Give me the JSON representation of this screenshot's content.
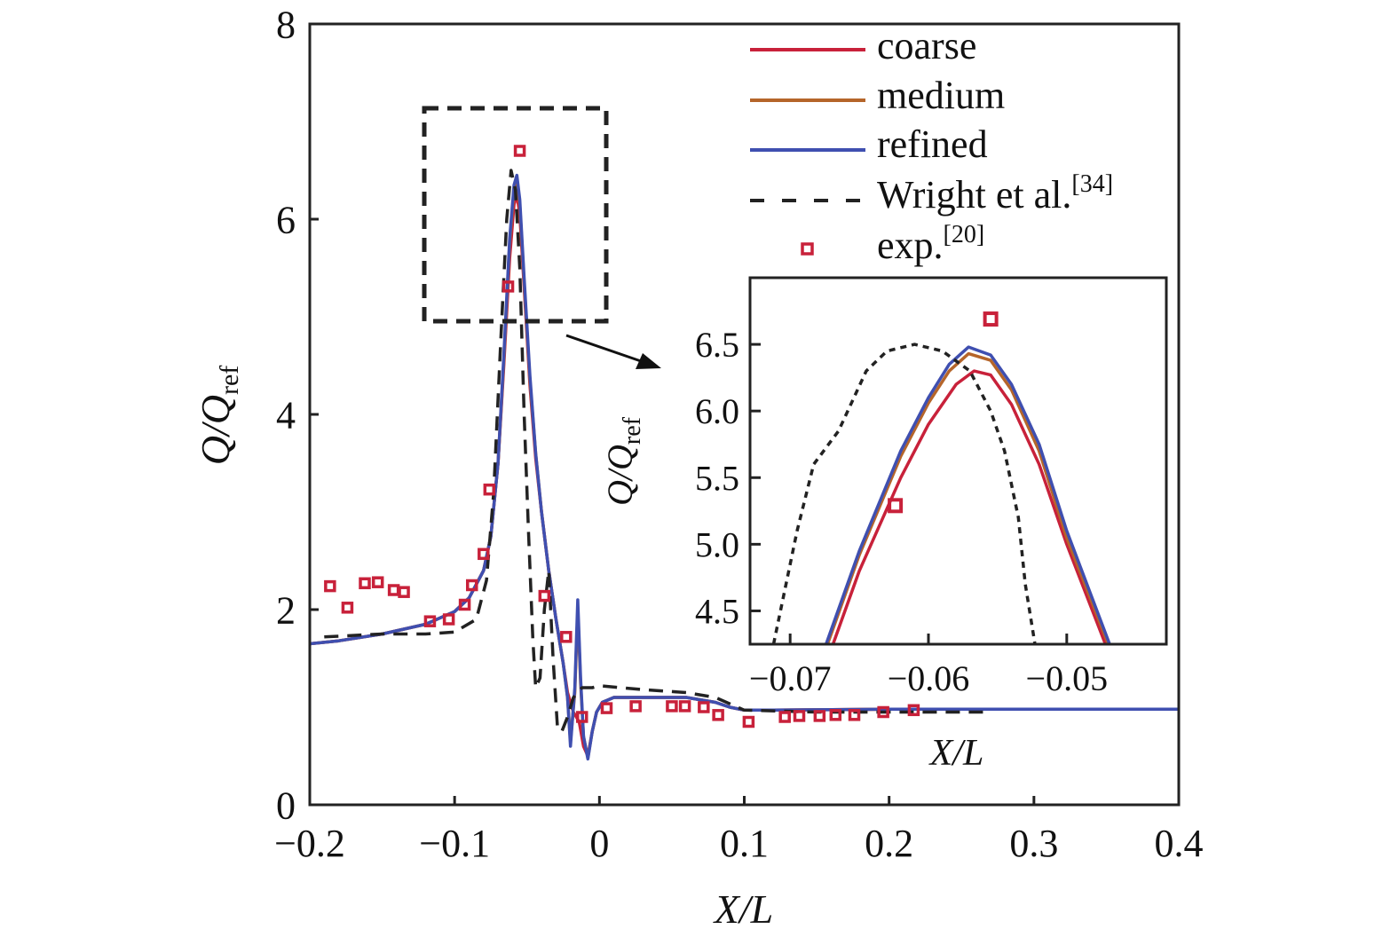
{
  "colors": {
    "coarse": "#c8213a",
    "medium": "#b5652a",
    "refined": "#3f4fb0",
    "wright": "#222222",
    "exp": "#c8213a"
  },
  "legend": {
    "placement": "top-right",
    "items": [
      {
        "label": "coarse",
        "sup": ""
      },
      {
        "label": "medium",
        "sup": ""
      },
      {
        "label": "refined",
        "sup": ""
      },
      {
        "label": "Wright et al.",
        "sup": "[34]"
      },
      {
        "label": "exp.",
        "sup": "[20]"
      }
    ]
  },
  "chart_data": [
    {
      "type": "line",
      "xlabel": "X/L",
      "ylabel": {
        "main": "Q/Q",
        "sub": "ref"
      },
      "xlim": [
        -0.2,
        0.4
      ],
      "ylim": [
        0,
        8
      ],
      "xticks": [
        "−0.2",
        "−0.1",
        "0",
        "0.1",
        "0.2",
        "0.3",
        "0.4"
      ],
      "xtick_values": [
        -0.2,
        -0.1,
        0,
        0.1,
        0.2,
        0.3,
        0.4
      ],
      "yticks": [
        "0",
        "2",
        "4",
        "6",
        "8"
      ],
      "ytick_values": [
        0,
        2,
        4,
        6,
        8
      ],
      "grid": false,
      "series": [
        {
          "name": "coarse",
          "style": "solid",
          "x": [
            -0.2,
            -0.18,
            -0.15,
            -0.12,
            -0.1,
            -0.09,
            -0.08,
            -0.075,
            -0.07,
            -0.066,
            -0.062,
            -0.059,
            -0.057,
            -0.055,
            -0.052,
            -0.048,
            -0.044,
            -0.04,
            -0.035,
            -0.03,
            -0.025,
            -0.022,
            -0.018,
            -0.014,
            -0.011,
            -0.008,
            -0.005,
            -0.002,
            0.002,
            0.01,
            0.03,
            0.06,
            0.08,
            0.09,
            0.1,
            0.12,
            0.2,
            0.3,
            0.4
          ],
          "y": [
            1.65,
            1.68,
            1.75,
            1.85,
            1.98,
            2.12,
            2.4,
            2.75,
            3.5,
            4.5,
            5.6,
            6.15,
            6.25,
            6.05,
            5.3,
            4.3,
            3.55,
            3.0,
            2.4,
            1.9,
            1.45,
            1.15,
            0.95,
            0.85,
            0.6,
            0.5,
            0.75,
            0.95,
            1.05,
            1.1,
            1.1,
            1.1,
            1.05,
            1.0,
            0.97,
            0.97,
            0.98,
            0.98,
            0.98
          ]
        },
        {
          "name": "medium",
          "style": "solid",
          "x": [
            -0.2,
            -0.18,
            -0.15,
            -0.12,
            -0.1,
            -0.09,
            -0.08,
            -0.075,
            -0.07,
            -0.066,
            -0.062,
            -0.059,
            -0.057,
            -0.055,
            -0.052,
            -0.048,
            -0.044,
            -0.04,
            -0.035,
            -0.03,
            -0.025,
            -0.022,
            -0.02,
            -0.017,
            -0.015,
            -0.013,
            -0.011,
            -0.008,
            -0.005,
            -0.002,
            0.002,
            0.01,
            0.03,
            0.06,
            0.08,
            0.09,
            0.1,
            0.12,
            0.2,
            0.3,
            0.4
          ],
          "y": [
            1.65,
            1.68,
            1.75,
            1.85,
            1.98,
            2.12,
            2.4,
            2.75,
            3.5,
            4.55,
            5.75,
            6.3,
            6.4,
            6.15,
            5.35,
            4.35,
            3.6,
            3.0,
            2.4,
            1.9,
            1.45,
            1.1,
            0.65,
            1.15,
            2.0,
            1.25,
            0.7,
            0.48,
            0.75,
            0.95,
            1.05,
            1.1,
            1.1,
            1.1,
            1.05,
            1.0,
            0.97,
            0.97,
            0.98,
            0.98,
            0.98
          ]
        },
        {
          "name": "refined",
          "style": "solid",
          "x": [
            -0.2,
            -0.18,
            -0.15,
            -0.12,
            -0.1,
            -0.09,
            -0.08,
            -0.075,
            -0.07,
            -0.066,
            -0.062,
            -0.059,
            -0.057,
            -0.055,
            -0.052,
            -0.048,
            -0.044,
            -0.04,
            -0.035,
            -0.03,
            -0.025,
            -0.022,
            -0.02,
            -0.017,
            -0.015,
            -0.013,
            -0.011,
            -0.008,
            -0.005,
            -0.002,
            0.002,
            0.01,
            0.03,
            0.06,
            0.08,
            0.09,
            0.1,
            0.12,
            0.2,
            0.3,
            0.4
          ],
          "y": [
            1.65,
            1.68,
            1.75,
            1.85,
            1.98,
            2.12,
            2.4,
            2.75,
            3.5,
            4.6,
            5.8,
            6.35,
            6.45,
            6.2,
            5.4,
            4.4,
            3.6,
            3.0,
            2.4,
            1.9,
            1.45,
            1.1,
            0.6,
            1.2,
            2.1,
            1.3,
            0.7,
            0.47,
            0.75,
            0.95,
            1.05,
            1.1,
            1.1,
            1.1,
            1.05,
            1.0,
            0.97,
            0.97,
            0.98,
            0.98,
            0.98
          ]
        },
        {
          "name": "Wright et al.",
          "style": "dashed",
          "x": [
            -0.19,
            -0.15,
            -0.12,
            -0.1,
            -0.085,
            -0.078,
            -0.073,
            -0.068,
            -0.064,
            -0.061,
            -0.058,
            -0.055,
            -0.052,
            -0.049,
            -0.046,
            -0.044,
            -0.041,
            -0.038,
            -0.035,
            -0.032,
            -0.029,
            -0.026,
            -0.022,
            -0.018,
            -0.012,
            -0.005,
            0,
            0.03,
            0.06,
            0.08,
            0.1,
            0.15,
            0.2,
            0.27
          ],
          "y": [
            1.72,
            1.75,
            1.75,
            1.77,
            1.9,
            2.3,
            3.2,
            4.8,
            6.0,
            6.5,
            6.3,
            5.5,
            4.0,
            2.8,
            1.7,
            1.2,
            1.3,
            2.0,
            2.4,
            1.5,
            0.8,
            0.75,
            0.9,
            1.1,
            1.2,
            1.2,
            1.22,
            1.18,
            1.15,
            1.1,
            0.97,
            0.95,
            0.95,
            0.95
          ]
        },
        {
          "name": "exp.",
          "style": "markers",
          "x": [
            -0.186,
            -0.174,
            -0.162,
            -0.153,
            -0.142,
            -0.135,
            -0.117,
            -0.104,
            -0.093,
            -0.088,
            -0.08,
            -0.076,
            -0.063,
            -0.055,
            -0.038,
            -0.023,
            -0.012,
            0.005,
            0.025,
            0.05,
            0.059,
            0.072,
            0.082,
            0.103,
            0.128,
            0.138,
            0.152,
            0.163,
            0.176,
            0.196,
            0.217
          ],
          "y": [
            2.24,
            2.02,
            2.27,
            2.28,
            2.2,
            2.18,
            1.88,
            1.9,
            2.05,
            2.25,
            2.57,
            3.23,
            5.31,
            6.7,
            2.14,
            1.72,
            0.9,
            0.99,
            1.01,
            1.01,
            1.01,
            1.0,
            0.92,
            0.85,
            0.9,
            0.91,
            0.91,
            0.92,
            0.92,
            0.95,
            0.97
          ]
        }
      ]
    },
    {
      "type": "line",
      "role": "inset",
      "xlabel": "X/L",
      "ylabel": {
        "main": "Q/Q",
        "sub": "ref"
      },
      "xlim": [
        -0.0729,
        -0.0428
      ],
      "ylim": [
        4.25,
        7.0
      ],
      "xticks": [
        "−0.07",
        "−0.06",
        "−0.05"
      ],
      "xtick_values": [
        -0.07,
        -0.06,
        -0.05
      ],
      "yticks": [
        "4.5",
        "5.0",
        "5.5",
        "6.0",
        "6.5"
      ],
      "ytick_values": [
        4.5,
        5.0,
        5.5,
        6.0,
        6.5
      ],
      "grid": false,
      "series": [
        {
          "name": "coarse",
          "style": "solid",
          "x": [
            -0.0669,
            -0.065,
            -0.062,
            -0.06,
            -0.058,
            -0.0567,
            -0.0555,
            -0.054,
            -0.052,
            -0.05,
            -0.0472
          ],
          "y": [
            4.25,
            4.8,
            5.5,
            5.9,
            6.2,
            6.3,
            6.27,
            6.05,
            5.6,
            5.0,
            4.25
          ]
        },
        {
          "name": "medium",
          "style": "solid",
          "x": [
            -0.0673,
            -0.065,
            -0.062,
            -0.06,
            -0.0585,
            -0.0571,
            -0.0555,
            -0.054,
            -0.052,
            -0.05,
            -0.047
          ],
          "y": [
            4.25,
            4.92,
            5.66,
            6.06,
            6.3,
            6.43,
            6.38,
            6.16,
            5.7,
            5.05,
            4.25
          ]
        },
        {
          "name": "refined",
          "style": "solid",
          "x": [
            -0.0674,
            -0.065,
            -0.062,
            -0.06,
            -0.0585,
            -0.0571,
            -0.0555,
            -0.054,
            -0.052,
            -0.05,
            -0.0469
          ],
          "y": [
            4.25,
            4.95,
            5.7,
            6.1,
            6.35,
            6.48,
            6.42,
            6.2,
            5.75,
            5.1,
            4.25
          ]
        },
        {
          "name": "Wright et al.",
          "style": "dashed",
          "x": [
            -0.0712,
            -0.0695,
            -0.0683,
            -0.0665,
            -0.0645,
            -0.063,
            -0.061,
            -0.059,
            -0.057,
            -0.0555,
            -0.0545,
            -0.0535,
            -0.053,
            -0.0523
          ],
          "y": [
            4.25,
            5.1,
            5.6,
            5.85,
            6.3,
            6.45,
            6.5,
            6.45,
            6.3,
            6.0,
            5.7,
            5.2,
            4.7,
            4.25
          ]
        },
        {
          "name": "exp.",
          "style": "markers",
          "x": [
            -0.0624,
            -0.0555
          ],
          "y": [
            5.29,
            6.69
          ]
        }
      ]
    }
  ]
}
